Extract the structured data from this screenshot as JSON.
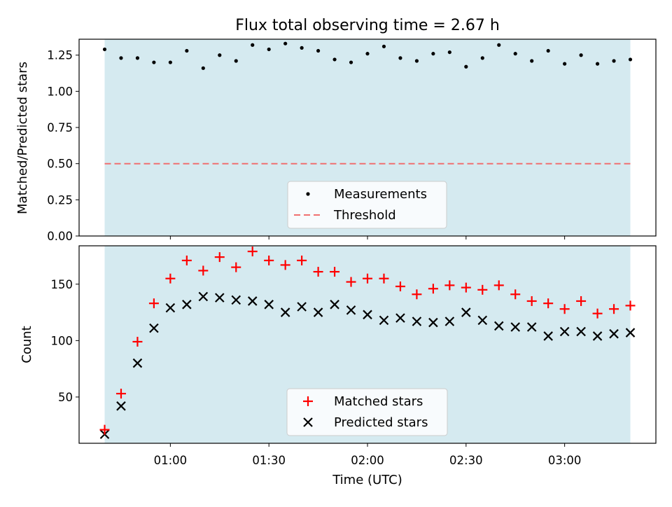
{
  "chart_data": [
    {
      "type": "scatter",
      "title": "Flux total observing time = 2.67 h",
      "xlabel": "",
      "ylabel": "Matched/Predicted stars",
      "ylim": [
        0,
        1.36
      ],
      "yticks": [
        "0.00",
        "0.25",
        "0.50",
        "0.75",
        "1.00",
        "1.25"
      ],
      "shaded_span": true,
      "threshold": 0.5,
      "legend": [
        "Measurements",
        "Threshold"
      ],
      "legend_position": "bottom-center",
      "series": [
        {
          "name": "Measurements",
          "marker": "dot",
          "color": "#000000",
          "x": [
            "00:40",
            "00:45",
            "00:50",
            "00:55",
            "01:00",
            "01:05",
            "01:10",
            "01:15",
            "01:20",
            "01:25",
            "01:30",
            "01:35",
            "01:40",
            "01:45",
            "01:50",
            "01:55",
            "02:00",
            "02:05",
            "02:10",
            "02:15",
            "02:20",
            "02:25",
            "02:30",
            "02:35",
            "02:40",
            "02:45",
            "02:50",
            "02:55",
            "03:00",
            "03:05",
            "03:10",
            "03:15",
            "03:20"
          ],
          "values": [
            1.29,
            1.23,
            1.23,
            1.2,
            1.2,
            1.28,
            1.16,
            1.25,
            1.21,
            1.32,
            1.29,
            1.33,
            1.3,
            1.28,
            1.22,
            1.2,
            1.26,
            1.31,
            1.23,
            1.21,
            1.26,
            1.27,
            1.17,
            1.23,
            1.32,
            1.26,
            1.21,
            1.28,
            1.19,
            1.25,
            1.19,
            1.21,
            1.22
          ]
        },
        {
          "name": "Threshold",
          "style": "dashed",
          "color": "#f07070",
          "values": [
            0.5
          ]
        }
      ]
    },
    {
      "type": "scatter",
      "title": "",
      "xlabel": "Time (UTC)",
      "ylabel": "Count",
      "ylim": [
        9,
        184
      ],
      "yticks": [
        "50",
        "100",
        "150"
      ],
      "xticks": [
        "01:00",
        "01:30",
        "02:00",
        "02:30",
        "03:00"
      ],
      "shaded_span": true,
      "legend": [
        "Matched stars",
        "Predicted stars"
      ],
      "legend_position": "bottom-center",
      "categories": [
        "00:40",
        "00:45",
        "00:50",
        "00:55",
        "01:00",
        "01:05",
        "01:10",
        "01:15",
        "01:20",
        "01:25",
        "01:30",
        "01:35",
        "01:40",
        "01:45",
        "01:50",
        "01:55",
        "02:00",
        "02:05",
        "02:10",
        "02:15",
        "02:20",
        "02:25",
        "02:30",
        "02:35",
        "02:40",
        "02:45",
        "02:50",
        "02:55",
        "03:00",
        "03:05",
        "03:10",
        "03:15",
        "03:20"
      ],
      "series": [
        {
          "name": "Matched stars",
          "marker": "plus",
          "color": "#ff0000",
          "values": [
            21,
            53,
            99,
            133,
            155,
            171,
            162,
            174,
            165,
            179,
            171,
            167,
            171,
            161,
            161,
            152,
            155,
            155,
            148,
            141,
            146,
            149,
            147,
            145,
            149,
            141,
            135,
            133,
            128,
            135,
            124,
            128,
            131
          ]
        },
        {
          "name": "Predicted stars",
          "marker": "x",
          "color": "#000000",
          "values": [
            17,
            42,
            80,
            111,
            129,
            132,
            139,
            138,
            136,
            135,
            132,
            125,
            130,
            125,
            132,
            127,
            123,
            118,
            120,
            117,
            116,
            117,
            125,
            118,
            113,
            112,
            112,
            104,
            108,
            108,
            104,
            106,
            107
          ]
        }
      ]
    }
  ],
  "colors": {
    "span": "#d5eaf0",
    "threshold": "#f07070",
    "matched": "#ff0000",
    "predicted": "#000000",
    "measurement": "#000000"
  }
}
